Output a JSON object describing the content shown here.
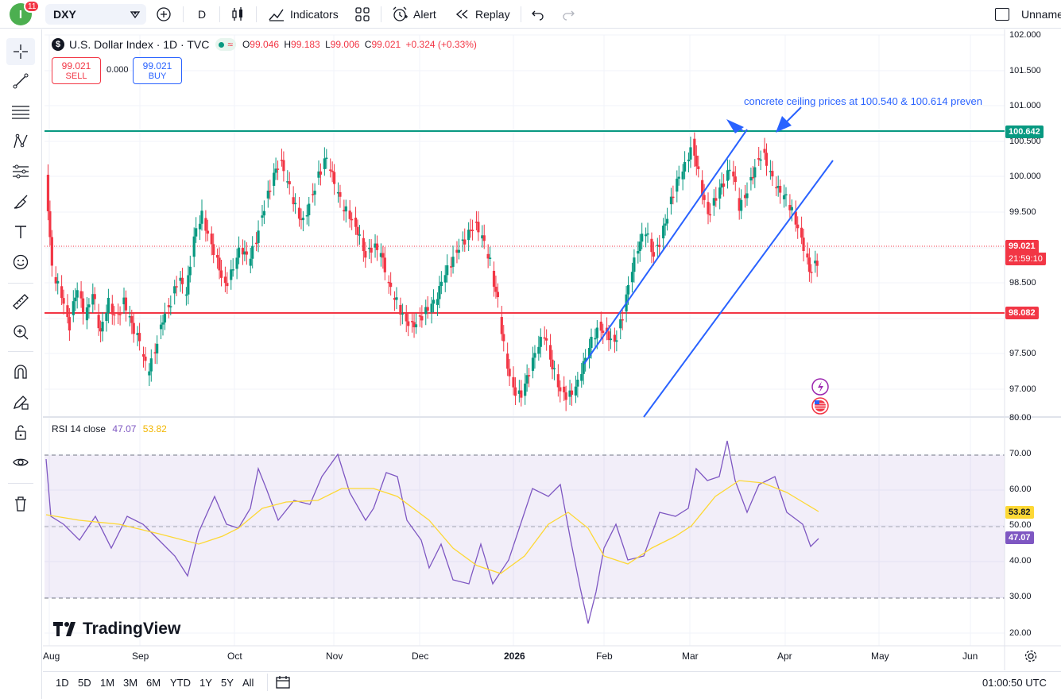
{
  "topbar": {
    "avatar_letter": "I",
    "notification_count": "11",
    "symbol": "DXY",
    "interval": "D",
    "indicators_label": "Indicators",
    "alert_label": "Alert",
    "replay_label": "Replay",
    "layout_name": "Unnamed"
  },
  "legend": {
    "title": "U.S. Dollar Index · 1D · TVC",
    "open_label": "O",
    "open": "99.046",
    "high_label": "H",
    "high": "99.183",
    "low_label": "L",
    "low": "99.006",
    "close_label": "C",
    "close": "99.021",
    "change": "+0.324 (+0.33%)"
  },
  "trade": {
    "sell_price": "99.021",
    "sell_label": "SELL",
    "spread": "0.000",
    "buy_price": "99.021",
    "buy_label": "BUY"
  },
  "annotation": "concrete ceiling prices at 100.540 & 100.614 preven",
  "price_axis": [
    "102.000",
    "101.500",
    "101.000",
    "100.500",
    "100.000",
    "99.500",
    "99.000",
    "98.500",
    "97.500",
    "97.000",
    "80.00"
  ],
  "price_badges": {
    "resistance": "100.642",
    "last": "99.021",
    "countdown": "21:59:10",
    "support": "98.082"
  },
  "rsi": {
    "label": "RSI 14 close",
    "value": "47.07",
    "ma_value": "53.82",
    "axis": [
      "70.00",
      "60.00",
      "50.00",
      "40.00",
      "30.00",
      "20.00"
    ],
    "badge_ma": "53.82",
    "badge_rsi": "47.07"
  },
  "time_axis": [
    "Aug",
    "Sep",
    "Oct",
    "Nov",
    "Dec",
    "2026",
    "Feb",
    "Mar",
    "Apr",
    "May",
    "Jun"
  ],
  "ranges": [
    "1D",
    "5D",
    "1M",
    "3M",
    "6M",
    "YTD",
    "1Y",
    "5Y",
    "All"
  ],
  "clock": "01:00:50 UTC",
  "watermark": "TradingView",
  "colors": {
    "up": "#089981",
    "down": "#f23645",
    "channel": "#2962ff",
    "rsi": "#7e57c2",
    "rsi_ma": "#fdd835",
    "resistance": "#089981",
    "support": "#f23645"
  }
}
